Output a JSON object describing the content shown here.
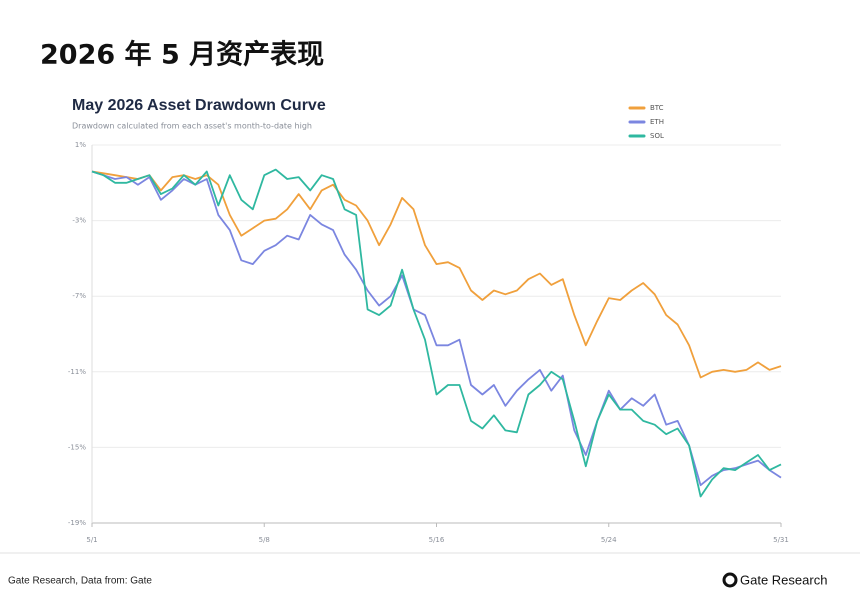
{
  "page_title": "2026 年 5 月资产表现",
  "chart_data": {
    "type": "line",
    "title": "May 2026 Asset Drawdown Curve",
    "subtitle": "Drawdown calculated from each asset's month-to-date high",
    "x": [
      1,
      1.5,
      2,
      2.5,
      3,
      3.5,
      4,
      4.5,
      5,
      5.5,
      6,
      6.5,
      7,
      7.5,
      8,
      8.5,
      9,
      9.5,
      10,
      10.5,
      11,
      11.5,
      12,
      12.5,
      13,
      13.5,
      14,
      14.5,
      15,
      15.5,
      16,
      16.5,
      17,
      17.5,
      18,
      18.5,
      19,
      19.5,
      20,
      20.5,
      21,
      21.5,
      22,
      22.5,
      23,
      23.5,
      24,
      24.5,
      25,
      25.5,
      26,
      26.5,
      27,
      27.5,
      28,
      28.5,
      29,
      29.5,
      30,
      30.5,
      31
    ],
    "series": [
      {
        "name": "BTC",
        "color": "#f0a03c",
        "values": [
          -0.4,
          -0.5,
          -0.6,
          -0.7,
          -0.8,
          -0.6,
          -1.4,
          -0.7,
          -0.6,
          -0.8,
          -0.6,
          -1.1,
          -2.7,
          -3.8,
          -3.4,
          -3.0,
          -2.9,
          -2.4,
          -1.6,
          -2.4,
          -1.4,
          -1.1,
          -1.9,
          -2.2,
          -3.0,
          -4.3,
          -3.2,
          -1.8,
          -2.4,
          -4.3,
          -5.3,
          -5.2,
          -5.5,
          -6.7,
          -7.2,
          -6.7,
          -6.9,
          -6.7,
          -6.1,
          -5.8,
          -6.4,
          -6.1,
          -8.0,
          -9.6,
          -8.3,
          -7.1,
          -7.2,
          -6.7,
          -6.3,
          -6.9,
          -8.0,
          -8.5,
          -9.6,
          -11.3,
          -11.0,
          -10.9,
          -11.0,
          -10.9,
          -10.5,
          -10.9,
          -10.7
        ]
      },
      {
        "name": "ETH",
        "color": "#7b86e0",
        "values": [
          -0.4,
          -0.6,
          -0.8,
          -0.7,
          -1.1,
          -0.7,
          -1.9,
          -1.4,
          -0.8,
          -1.1,
          -0.8,
          -2.7,
          -3.5,
          -5.1,
          -5.3,
          -4.6,
          -4.3,
          -3.8,
          -4.0,
          -2.7,
          -3.2,
          -3.5,
          -4.8,
          -5.6,
          -6.7,
          -7.5,
          -7.0,
          -5.9,
          -7.7,
          -8.0,
          -9.6,
          -9.6,
          -9.3,
          -11.7,
          -12.2,
          -11.7,
          -12.8,
          -12.0,
          -11.4,
          -10.9,
          -12.0,
          -11.2,
          -14.1,
          -15.4,
          -13.6,
          -12.0,
          -13.0,
          -12.4,
          -12.8,
          -12.2,
          -13.8,
          -13.6,
          -14.9,
          -17.0,
          -16.5,
          -16.2,
          -16.1,
          -15.9,
          -15.7,
          -16.2,
          -16.6
        ]
      },
      {
        "name": "SOL",
        "color": "#2fb8a0",
        "values": [
          -0.4,
          -0.6,
          -1.0,
          -1.0,
          -0.8,
          -0.6,
          -1.6,
          -1.3,
          -0.6,
          -1.1,
          -0.4,
          -2.2,
          -0.6,
          -1.9,
          -2.4,
          -0.6,
          -0.3,
          -0.8,
          -0.7,
          -1.4,
          -0.6,
          -0.8,
          -2.4,
          -2.7,
          -7.7,
          -8.0,
          -7.5,
          -5.6,
          -7.7,
          -9.3,
          -12.2,
          -11.7,
          -11.7,
          -13.6,
          -14.0,
          -13.3,
          -14.1,
          -14.2,
          -12.2,
          -11.7,
          -11.0,
          -11.4,
          -13.6,
          -16.0,
          -13.6,
          -12.2,
          -13.0,
          -13.0,
          -13.6,
          -13.8,
          -14.3,
          -14.0,
          -14.9,
          -17.6,
          -16.7,
          -16.1,
          -16.2,
          -15.8,
          -15.4,
          -16.2,
          -15.9
        ]
      }
    ],
    "xlim": [
      1,
      31
    ],
    "xticks": [
      {
        "value": 1,
        "label": "5/1"
      },
      {
        "value": 8.5,
        "label": "5/8"
      },
      {
        "value": 16,
        "label": "5/16"
      },
      {
        "value": 23.5,
        "label": "5/24"
      },
      {
        "value": 31,
        "label": "5/31"
      }
    ],
    "ylim": [
      -19,
      1
    ],
    "yticks": [
      {
        "value": 1,
        "label": "1%"
      },
      {
        "value": -3,
        "label": "-3%"
      },
      {
        "value": -7,
        "label": "-7%"
      },
      {
        "value": -11,
        "label": "-11%"
      },
      {
        "value": -15,
        "label": "-15%"
      },
      {
        "value": -19,
        "label": "-19%"
      }
    ],
    "grid": true,
    "legend": "top-right"
  },
  "footer": {
    "source": "Gate Research, Data from: Gate",
    "brand": "Gate Research"
  }
}
